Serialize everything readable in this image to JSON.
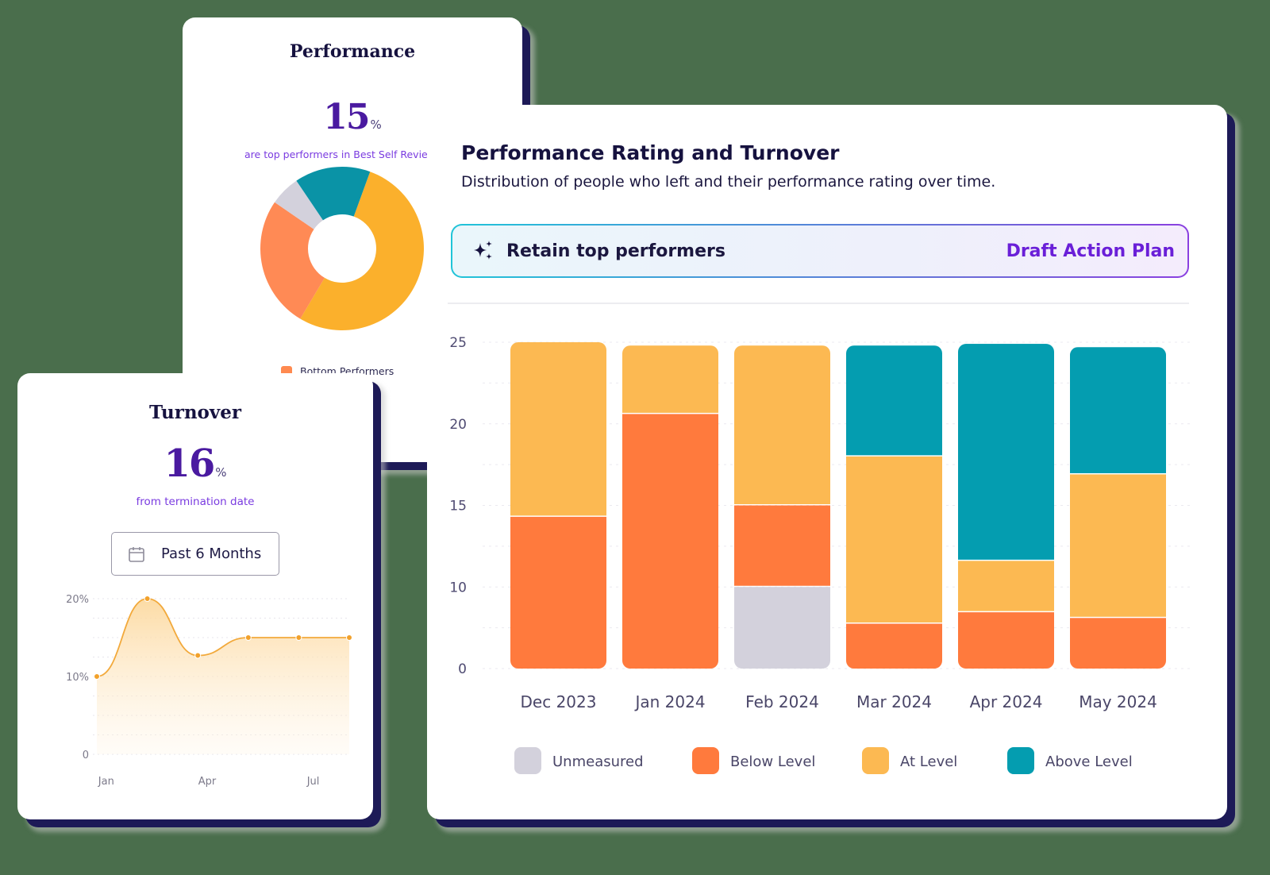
{
  "colors": {
    "background": "#4a6e4c",
    "unmeasured": "#d3d1dc",
    "below_level": "#ff7a3d",
    "at_level": "#fcb952",
    "above_level": "#049db0",
    "accent_purple": "#6a1fd8",
    "line": "#f2a93b"
  },
  "performance_card": {
    "title": "Performance",
    "value": "15",
    "unit": "%",
    "subtitle": "are top performers in Best Self Revie",
    "legend_label": "Bottom Performers"
  },
  "turnover_card": {
    "title": "Turnover",
    "value": "16",
    "unit": "%",
    "subtitle": "from termination date",
    "range_button_label": "Past 6 Months",
    "range_icon": "calendar-icon"
  },
  "main_card": {
    "title": "Performance Rating and Turnover",
    "subtitle": "Distribution of people who left and their performance rating over time.",
    "action_banner": {
      "icon": "sparkle-icon",
      "label": "Retain top performers",
      "button_label": "Draft Action Plan"
    }
  },
  "chart_data": [
    {
      "id": "performance-donut",
      "type": "pie",
      "title": "Performance",
      "donut": true,
      "slices": [
        {
          "name": "At Level",
          "value": 53,
          "color": "#fbb02c"
        },
        {
          "name": "Bottom Performers",
          "value": 26,
          "color": "#ff8a55"
        },
        {
          "name": "Unmeasured",
          "value": 6,
          "color": "#d3d1dc"
        },
        {
          "name": "Above Level",
          "value": 15,
          "color": "#0a93a6"
        }
      ],
      "legend": [
        "Bottom Performers"
      ],
      "legend_position": "bottom"
    },
    {
      "id": "turnover-line",
      "type": "area",
      "title": "Turnover",
      "x": [
        1,
        2,
        3,
        4,
        5,
        6
      ],
      "values": [
        10,
        20,
        12.7,
        15,
        15,
        15
      ],
      "x_tick_labels": [
        {
          "x": 1.5,
          "label": "Jan"
        },
        {
          "x": 3.5,
          "label": "Apr"
        },
        {
          "x": 5.6,
          "label": "Jul"
        }
      ],
      "y_ticks": [
        {
          "value": 0,
          "label": "0"
        },
        {
          "value": 10,
          "label": "10%"
        },
        {
          "value": 20,
          "label": "20%"
        }
      ],
      "ylim": [
        0,
        20
      ],
      "grid": true
    },
    {
      "id": "performance-turnover-bars",
      "type": "bar",
      "stacked": true,
      "title": "Performance Rating and Turnover",
      "categories": [
        "Dec 2023",
        "Jan 2024",
        "Feb 2024",
        "Mar 2024",
        "Apr 2024",
        "May 2024"
      ],
      "series": [
        {
          "name": "Unmeasured",
          "color": "#d3d1dc",
          "values": [
            0,
            0,
            10,
            0,
            0,
            0
          ]
        },
        {
          "name": "Below Level",
          "color": "#ff7a3d",
          "values": [
            14.3,
            20.6,
            5,
            5.5,
            6.9,
            6.2
          ]
        },
        {
          "name": "At Level",
          "color": "#fcb952",
          "values": [
            10.7,
            4.2,
            9.8,
            12.5,
            4.7,
            10.7
          ]
        },
        {
          "name": "Above Level",
          "color": "#049db0",
          "values": [
            0,
            0,
            0,
            6.8,
            13.3,
            7.8
          ]
        }
      ],
      "y_ticks": [
        0,
        10,
        15,
        20,
        25
      ],
      "ylim": [
        0,
        25
      ],
      "grid": true,
      "legend": [
        "Unmeasured",
        "Below Level",
        "At Level",
        "Above Level"
      ],
      "legend_position": "bottom"
    }
  ]
}
